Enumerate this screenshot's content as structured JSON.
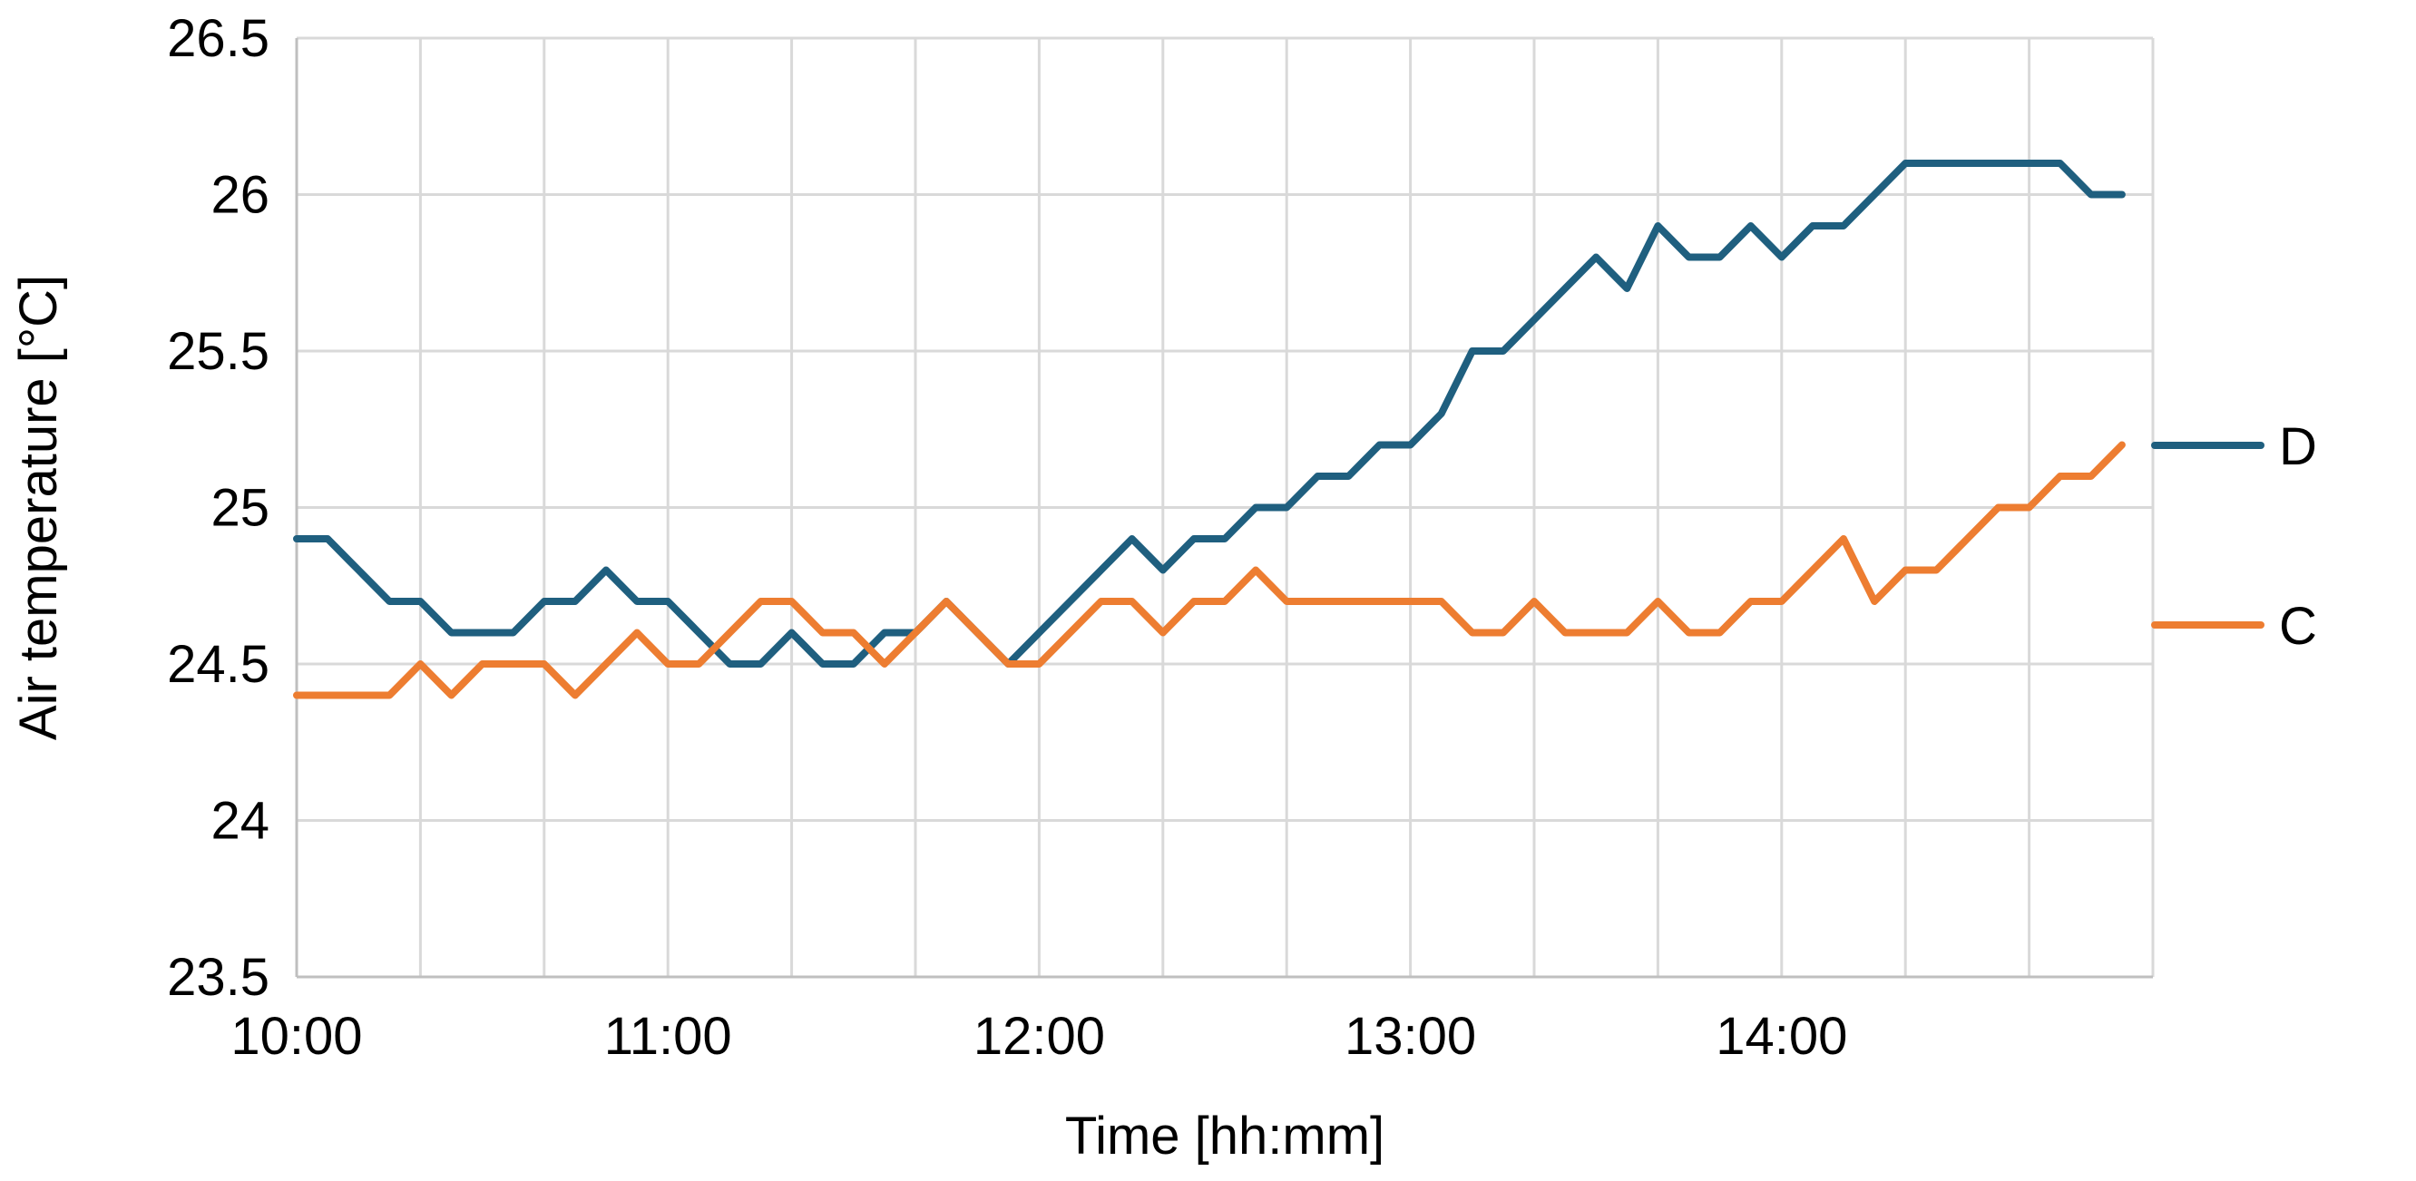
{
  "chart_data": {
    "type": "line",
    "title": "",
    "xlabel": "Time [hh:mm]",
    "ylabel": "Air temperature [°C]",
    "ylim": [
      23.5,
      26.5
    ],
    "yticks": [
      "23.5",
      "24",
      "24.5",
      "25",
      "25.5",
      "26",
      "26.5"
    ],
    "xlim_minutes": [
      0,
      300
    ],
    "xtick_labels": [
      "10:00",
      "11:00",
      "12:00",
      "13:00",
      "14:00"
    ],
    "grid": true,
    "legend_position": "right",
    "x": [
      "10:00",
      "10:05",
      "10:10",
      "10:15",
      "10:20",
      "10:25",
      "10:30",
      "10:35",
      "10:40",
      "10:45",
      "10:50",
      "10:55",
      "11:00",
      "11:05",
      "11:10",
      "11:15",
      "11:20",
      "11:25",
      "11:30",
      "11:35",
      "11:40",
      "11:45",
      "11:50",
      "11:55",
      "12:00",
      "12:05",
      "12:10",
      "12:15",
      "12:20",
      "12:25",
      "12:30",
      "12:35",
      "12:40",
      "12:45",
      "12:50",
      "12:55",
      "13:00",
      "13:05",
      "13:10",
      "13:15",
      "13:20",
      "13:25",
      "13:30",
      "13:35",
      "13:40",
      "13:45",
      "13:50",
      "13:55",
      "14:00",
      "14:05",
      "14:10",
      "14:15",
      "14:20",
      "14:25",
      "14:30",
      "14:35",
      "14:40",
      "14:45",
      "14:50",
      "14:55"
    ],
    "series": [
      {
        "name": "D",
        "color": "#1f5f7f",
        "values": [
          24.9,
          24.9,
          24.8,
          24.7,
          24.7,
          24.6,
          24.6,
          24.6,
          24.7,
          24.7,
          24.8,
          24.7,
          24.7,
          24.6,
          24.5,
          24.5,
          24.6,
          24.5,
          24.5,
          24.6,
          24.6,
          24.7,
          24.6,
          24.5,
          24.6,
          24.7,
          24.8,
          24.9,
          24.8,
          24.9,
          24.9,
          25.0,
          25.0,
          25.1,
          25.1,
          25.2,
          25.2,
          25.3,
          25.5,
          25.5,
          25.6,
          25.7,
          25.8,
          25.7,
          25.9,
          25.8,
          25.8,
          25.9,
          25.8,
          25.9,
          25.9,
          26.0,
          26.1,
          26.1,
          26.1,
          26.1,
          26.1,
          26.1,
          26.0,
          26.0
        ]
      },
      {
        "name": "C",
        "color": "#ed7d31",
        "values": [
          24.4,
          24.4,
          24.4,
          24.4,
          24.5,
          24.4,
          24.5,
          24.5,
          24.5,
          24.4,
          24.5,
          24.6,
          24.5,
          24.5,
          24.6,
          24.7,
          24.7,
          24.6,
          24.6,
          24.5,
          24.6,
          24.7,
          24.6,
          24.5,
          24.5,
          24.6,
          24.7,
          24.7,
          24.6,
          24.7,
          24.7,
          24.8,
          24.7,
          24.7,
          24.7,
          24.7,
          24.7,
          24.7,
          24.6,
          24.6,
          24.7,
          24.6,
          24.6,
          24.6,
          24.7,
          24.6,
          24.6,
          24.7,
          24.7,
          24.8,
          24.9,
          24.7,
          24.8,
          24.8,
          24.9,
          25.0,
          25.0,
          25.1,
          25.1,
          25.2
        ]
      }
    ]
  }
}
